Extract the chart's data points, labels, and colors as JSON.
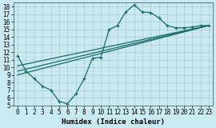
{
  "xlabel": "Humidex (Indice chaleur)",
  "ylabel": "",
  "bg_color": "#c8eaf0",
  "grid_color": "#b0c8c8",
  "line_color": "#1a6b6b",
  "xlim": [
    -0.5,
    23.5
  ],
  "ylim": [
    5,
    18.5
  ],
  "xticks": [
    0,
    1,
    2,
    3,
    4,
    5,
    6,
    7,
    8,
    9,
    10,
    11,
    12,
    13,
    14,
    15,
    16,
    17,
    18,
    19,
    20,
    21,
    22,
    23
  ],
  "yticks": [
    5,
    6,
    7,
    8,
    9,
    10,
    11,
    12,
    13,
    14,
    15,
    16,
    17,
    18
  ],
  "curve1_x": [
    0,
    1,
    2,
    3,
    4,
    5,
    6,
    7,
    8,
    9,
    10,
    11,
    12,
    13,
    14,
    15,
    16,
    17,
    18,
    19,
    20,
    21,
    22,
    23
  ],
  "curve1_y": [
    11.5,
    9.5,
    8.5,
    7.5,
    7.0,
    5.5,
    5.2,
    6.5,
    8.5,
    11.2,
    11.3,
    15.0,
    15.5,
    17.3,
    18.2,
    17.3,
    17.2,
    16.5,
    15.5,
    15.2,
    15.2,
    15.3,
    15.5,
    15.5
  ],
  "line1_x": [
    0,
    23
  ],
  "line1_y": [
    9.0,
    15.5
  ],
  "line2_x": [
    0,
    23
  ],
  "line2_y": [
    9.5,
    15.5
  ],
  "line3_x": [
    0,
    23
  ],
  "line3_y": [
    10.2,
    15.5
  ],
  "tick_fontsize": 5.5,
  "xlabel_fontsize": 6.5,
  "lw": 0.9
}
